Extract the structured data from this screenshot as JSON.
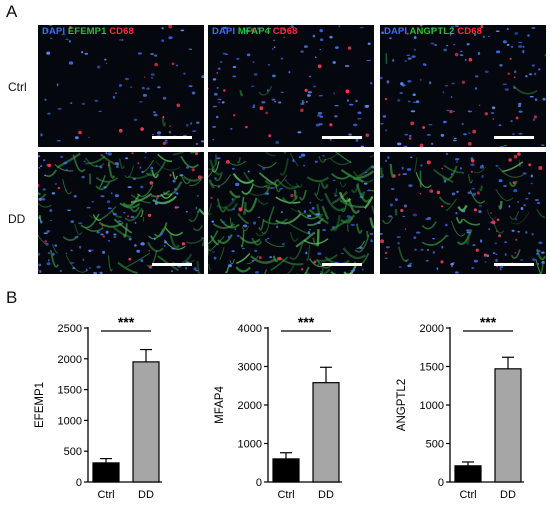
{
  "panel_a": {
    "letter": "A",
    "rows": [
      "Ctrl",
      "DD"
    ],
    "columns": [
      {
        "stains": [
          {
            "text": "DAPI",
            "color": "#3d6bff"
          },
          {
            "text": "EFEMP1",
            "color": "#2fbf3a"
          },
          {
            "text": "CD68",
            "color": "#ff2a3a"
          }
        ]
      },
      {
        "stains": [
          {
            "text": "DAPI",
            "color": "#3d6bff"
          },
          {
            "text": "MFAP4",
            "color": "#2fbf3a"
          },
          {
            "text": "CD68",
            "color": "#ff2a3a"
          }
        ]
      },
      {
        "stains": [
          {
            "text": "DAPI",
            "color": "#3d6bff"
          },
          {
            "text": "ANGPTL2",
            "color": "#2fbf3a"
          },
          {
            "text": "CD68",
            "color": "#ff2a3a"
          }
        ]
      }
    ]
  },
  "panel_b": {
    "letter": "B"
  },
  "chart_data": [
    {
      "type": "bar",
      "categories": [
        "Ctrl",
        "DD"
      ],
      "values": [
        310,
        1950
      ],
      "errors": [
        70,
        200
      ],
      "ylabel": "EFEMP1",
      "ylim": [
        0,
        2500
      ],
      "yticks": [
        "0",
        "500",
        "1000",
        "1500",
        "2000",
        "2500"
      ],
      "significance": "***",
      "bar_colors": [
        "#000000",
        "#a6a6a6"
      ]
    },
    {
      "type": "bar",
      "categories": [
        "Ctrl",
        "DD"
      ],
      "values": [
        600,
        2580
      ],
      "errors": [
        160,
        400
      ],
      "ylabel": "MFAP4",
      "ylim": [
        0,
        4000
      ],
      "yticks": [
        "0",
        "1000",
        "2000",
        "3000",
        "4000"
      ],
      "significance": "***",
      "bar_colors": [
        "#000000",
        "#a6a6a6"
      ]
    },
    {
      "type": "bar",
      "categories": [
        "Ctrl",
        "DD"
      ],
      "values": [
        210,
        1470
      ],
      "errors": [
        50,
        150
      ],
      "ylabel": "ANGPTL2",
      "ylim": [
        0,
        2000
      ],
      "yticks": [
        "0",
        "500",
        "1000",
        "1500",
        "2000"
      ],
      "significance": "***",
      "bar_colors": [
        "#000000",
        "#a6a6a6"
      ]
    }
  ]
}
